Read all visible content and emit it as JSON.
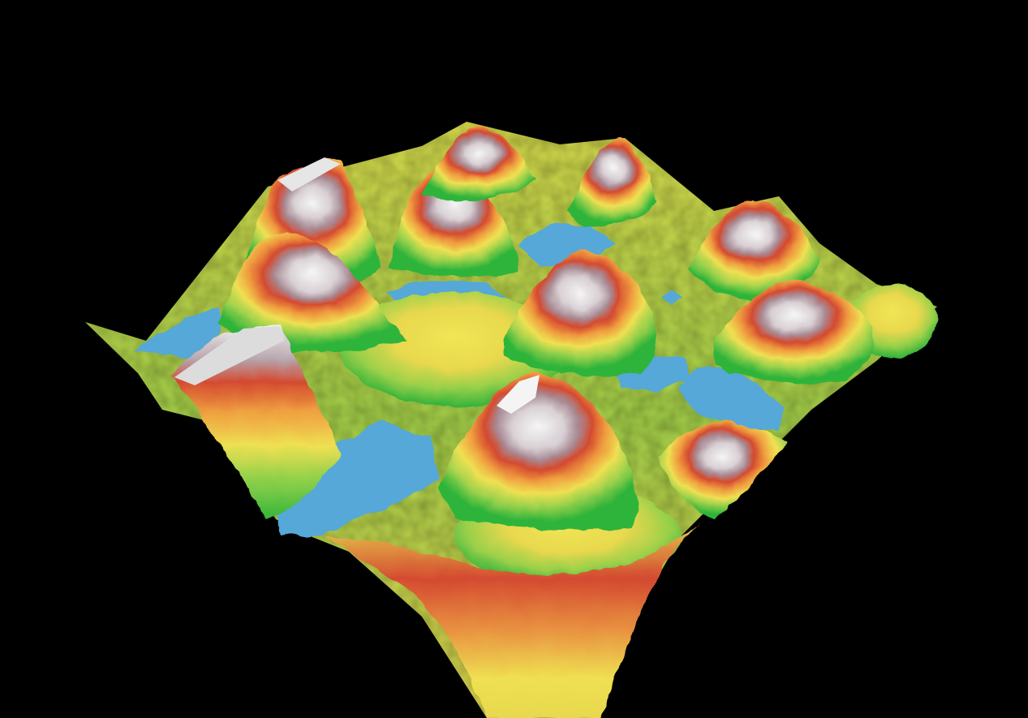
{
  "scene": {
    "background": "#000000",
    "palette": {
      "water": "#55a8d8",
      "lowland_green": "#3cb83a",
      "light_green": "#8fd04a",
      "yellow": "#f0e050",
      "orange": "#f0a040",
      "red": "#d84a32",
      "rock": "#b0a0a8",
      "snow": "#f2f2f2"
    }
  }
}
